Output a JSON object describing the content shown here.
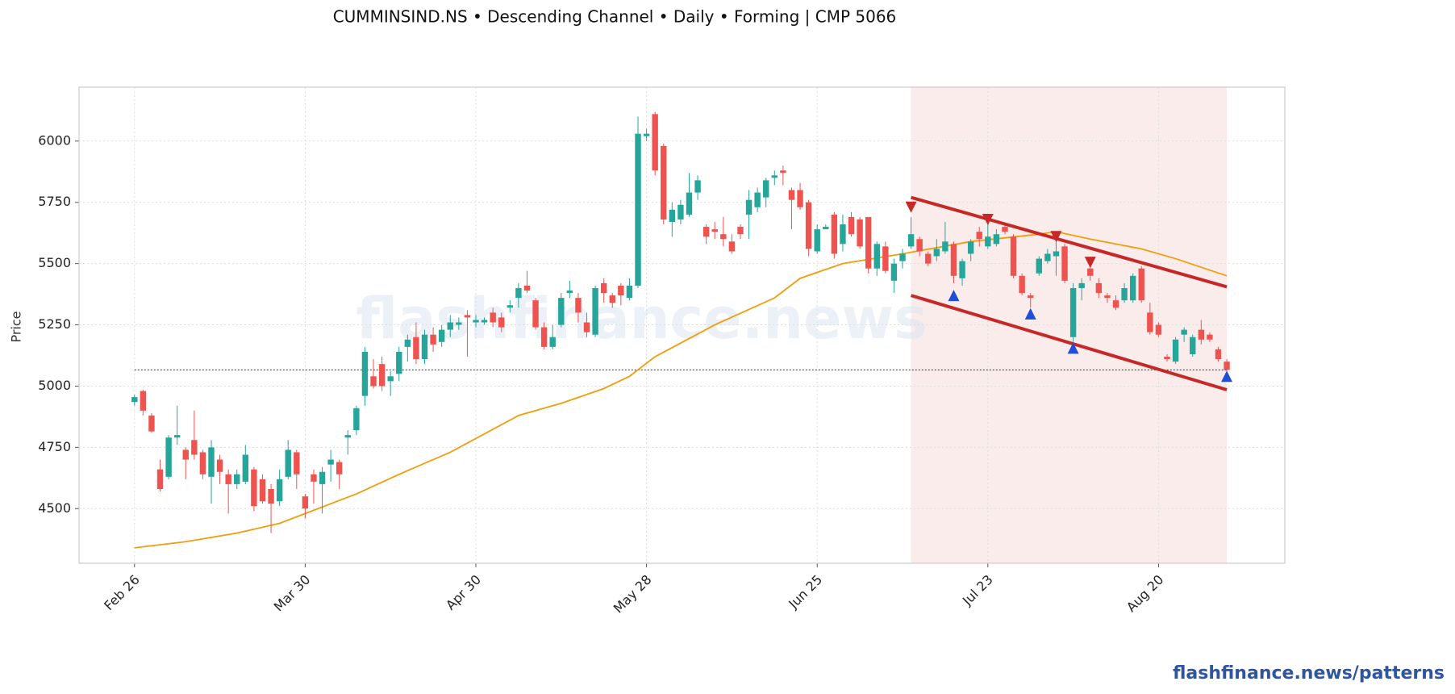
{
  "chart_data": {
    "type": "candlestick",
    "title": "CUMMINSIND.NS  •  Descending Channel  •  Daily  •  Forming  |  CMP 5066",
    "ylabel": "Price",
    "watermark": "flashfinance.news",
    "footer": "flashfinance.news/patterns",
    "up_color": "#26a69a",
    "down_color": "#ef5350",
    "ylim": [
      4277,
      6220
    ],
    "yticks": [
      4500,
      4750,
      5000,
      5250,
      5500,
      5750,
      6000
    ],
    "xlim": [
      -6.5,
      134.8
    ],
    "grid": true,
    "categories": [
      "Feb 26",
      null,
      null,
      null,
      null,
      null,
      null,
      null,
      null,
      null,
      null,
      null,
      null,
      null,
      null,
      null,
      null,
      null,
      null,
      null,
      "Mar 30",
      null,
      null,
      null,
      null,
      null,
      null,
      null,
      null,
      null,
      null,
      null,
      null,
      null,
      null,
      null,
      null,
      null,
      null,
      null,
      "Apr 30",
      null,
      null,
      null,
      null,
      null,
      null,
      null,
      null,
      null,
      null,
      null,
      null,
      null,
      null,
      null,
      null,
      null,
      null,
      null,
      "May 28",
      null,
      null,
      null,
      null,
      null,
      null,
      null,
      null,
      null,
      null,
      null,
      null,
      null,
      null,
      null,
      null,
      null,
      null,
      null,
      "Jun 25",
      null,
      null,
      null,
      null,
      null,
      null,
      null,
      null,
      null,
      null,
      null,
      null,
      null,
      null,
      null,
      null,
      null,
      null,
      null,
      "Jul 23",
      null,
      null,
      null,
      null,
      null,
      null,
      null,
      null,
      null,
      null,
      null,
      null,
      null,
      null,
      null,
      null,
      null,
      null,
      null,
      "Aug 20",
      null,
      null,
      null,
      null,
      null,
      null,
      null,
      null
    ],
    "open": [
      4935,
      4980,
      4880,
      4660,
      4630,
      4790,
      4740,
      4780,
      4730,
      4630,
      4700,
      4640,
      4600,
      4610,
      4660,
      4620,
      4580,
      4530,
      4630,
      4730,
      4550,
      4640,
      4600,
      4680,
      4690,
      4790,
      4820,
      4960,
      5040,
      5090,
      5020,
      5050,
      5160,
      5200,
      5110,
      5210,
      5180,
      5230,
      5250,
      5290,
      5260,
      5260,
      5300,
      5280,
      5320,
      5360,
      5410,
      5350,
      5240,
      5160,
      5250,
      5380,
      5360,
      5260,
      5210,
      5420,
      5370,
      5410,
      5360,
      5410,
      6020,
      6110,
      5980,
      5670,
      5680,
      5700,
      5790,
      5650,
      5640,
      5620,
      5590,
      5650,
      5700,
      5730,
      5770,
      5850,
      5880,
      5800,
      5800,
      5750,
      5550,
      5640,
      5700,
      5580,
      5690,
      5680,
      5690,
      5480,
      5570,
      5430,
      5510,
      5570,
      5600,
      5540,
      5530,
      5550,
      5580,
      5440,
      5540,
      5630,
      5570,
      5580,
      5650,
      5610,
      5450,
      5370,
      5460,
      5510,
      5530,
      5570,
      5200,
      5400,
      5480,
      5420,
      5370,
      5350,
      5350,
      5350,
      5480,
      5300,
      5250,
      5120,
      5100,
      5210,
      5130,
      5230,
      5210,
      5150,
      5100
    ],
    "high": [
      4965,
      4985,
      4890,
      4700,
      4800,
      4920,
      4750,
      4900,
      4740,
      4780,
      4720,
      4660,
      4660,
      4760,
      4670,
      4640,
      4600,
      4660,
      4780,
      4740,
      4560,
      4660,
      4670,
      4740,
      4700,
      4820,
      4920,
      5160,
      5110,
      5120,
      5060,
      5160,
      5210,
      5260,
      5230,
      5240,
      5250,
      5290,
      5280,
      5310,
      5290,
      5280,
      5320,
      5300,
      5350,
      5420,
      5470,
      5360,
      5260,
      5250,
      5380,
      5430,
      5380,
      5300,
      5410,
      5440,
      5380,
      5420,
      5440,
      6100,
      6050,
      6120,
      5990,
      5750,
      5760,
      5870,
      5860,
      5660,
      5670,
      5690,
      5620,
      5660,
      5800,
      5810,
      5850,
      5880,
      5900,
      5810,
      5830,
      5760,
      5660,
      5660,
      5710,
      5700,
      5710,
      5690,
      5690,
      5590,
      5590,
      5520,
      5560,
      5690,
      5610,
      5550,
      5600,
      5670,
      5590,
      5520,
      5600,
      5650,
      5690,
      5640,
      5660,
      5620,
      5460,
      5380,
      5530,
      5560,
      5600,
      5580,
      5420,
      5440,
      5500,
      5440,
      5380,
      5370,
      5420,
      5460,
      5490,
      5340,
      5260,
      5130,
      5200,
      5240,
      5210,
      5270,
      5220,
      5160,
      5110
    ],
    "low": [
      4920,
      4880,
      4810,
      4570,
      4620,
      4760,
      4620,
      4700,
      4620,
      4520,
      4600,
      4480,
      4580,
      4600,
      4490,
      4520,
      4400,
      4510,
      4620,
      4580,
      4460,
      4520,
      4480,
      4610,
      4580,
      4720,
      4800,
      4920,
      4990,
      4980,
      4960,
      5020,
      5100,
      5090,
      5090,
      5140,
      5160,
      5200,
      5230,
      5120,
      5240,
      5250,
      5240,
      5220,
      5300,
      5320,
      5380,
      5230,
      5150,
      5150,
      5240,
      5360,
      5260,
      5200,
      5200,
      5340,
      5320,
      5330,
      5350,
      5400,
      6000,
      5860,
      5660,
      5610,
      5660,
      5690,
      5760,
      5580,
      5600,
      5570,
      5540,
      5600,
      5600,
      5710,
      5730,
      5820,
      5820,
      5640,
      5720,
      5530,
      5540,
      5640,
      5520,
      5550,
      5610,
      5560,
      5460,
      5450,
      5460,
      5380,
      5480,
      5560,
      5530,
      5490,
      5510,
      5540,
      5420,
      5410,
      5510,
      5570,
      5560,
      5570,
      5620,
      5440,
      5370,
      5320,
      5450,
      5500,
      5450,
      5420,
      5180,
      5350,
      5430,
      5360,
      5340,
      5310,
      5340,
      5340,
      5340,
      5210,
      5200,
      5100,
      5090,
      5180,
      5120,
      5170,
      5180,
      5100,
      5060
    ],
    "close": [
      4955,
      4900,
      4815,
      4580,
      4790,
      4800,
      4700,
      4720,
      4640,
      4750,
      4650,
      4600,
      4640,
      4720,
      4510,
      4530,
      4520,
      4620,
      4740,
      4640,
      4500,
      4610,
      4650,
      4700,
      4640,
      4800,
      4910,
      5140,
      5000,
      5000,
      5040,
      5140,
      5190,
      5110,
      5210,
      5170,
      5230,
      5260,
      5260,
      5280,
      5270,
      5270,
      5260,
      5240,
      5330,
      5400,
      5390,
      5240,
      5160,
      5200,
      5360,
      5390,
      5300,
      5220,
      5400,
      5380,
      5340,
      5370,
      5410,
      6030,
      6030,
      5880,
      5680,
      5720,
      5740,
      5790,
      5840,
      5610,
      5630,
      5600,
      5550,
      5620,
      5760,
      5790,
      5840,
      5860,
      5870,
      5760,
      5730,
      5560,
      5640,
      5650,
      5540,
      5660,
      5620,
      5570,
      5480,
      5580,
      5470,
      5500,
      5540,
      5620,
      5550,
      5500,
      5560,
      5590,
      5450,
      5510,
      5590,
      5600,
      5610,
      5620,
      5630,
      5450,
      5380,
      5360,
      5520,
      5540,
      5550,
      5430,
      5400,
      5420,
      5450,
      5380,
      5360,
      5320,
      5400,
      5450,
      5350,
      5220,
      5210,
      5110,
      5190,
      5230,
      5200,
      5190,
      5190,
      5110,
      5066
    ],
    "ma": {
      "color": "#f29d0c",
      "x": [
        0,
        6,
        12,
        17,
        20,
        26,
        31,
        37,
        45,
        50,
        55,
        58,
        61,
        68,
        75,
        78,
        83,
        90,
        98,
        106,
        108,
        112,
        118,
        122,
        128
      ],
      "values": [
        4340,
        4365,
        4400,
        4440,
        4480,
        4560,
        4640,
        4730,
        4880,
        4930,
        4990,
        5040,
        5120,
        5250,
        5360,
        5440,
        5500,
        5540,
        5590,
        5620,
        5630,
        5600,
        5560,
        5520,
        5450
      ]
    },
    "cmp_line": {
      "value": 5066,
      "color": "#444444"
    },
    "zone": {
      "x": [
        91,
        128
      ],
      "color": "#f6d4d4"
    },
    "channel": {
      "color": "#c62828",
      "upper": {
        "x": [
          91,
          128
        ],
        "values": [
          5770,
          5405
        ]
      },
      "lower": {
        "x": [
          91,
          128
        ],
        "values": [
          5370,
          4985
        ]
      }
    },
    "highs": {
      "color": "#c62828",
      "x": [
        91,
        100,
        108,
        112
      ],
      "values": [
        5730,
        5680,
        5610,
        5505
      ]
    },
    "lows": {
      "color": "#1f4fd6",
      "x": [
        96,
        105,
        110,
        128
      ],
      "values": [
        5370,
        5295,
        5155,
        5040
      ]
    }
  }
}
